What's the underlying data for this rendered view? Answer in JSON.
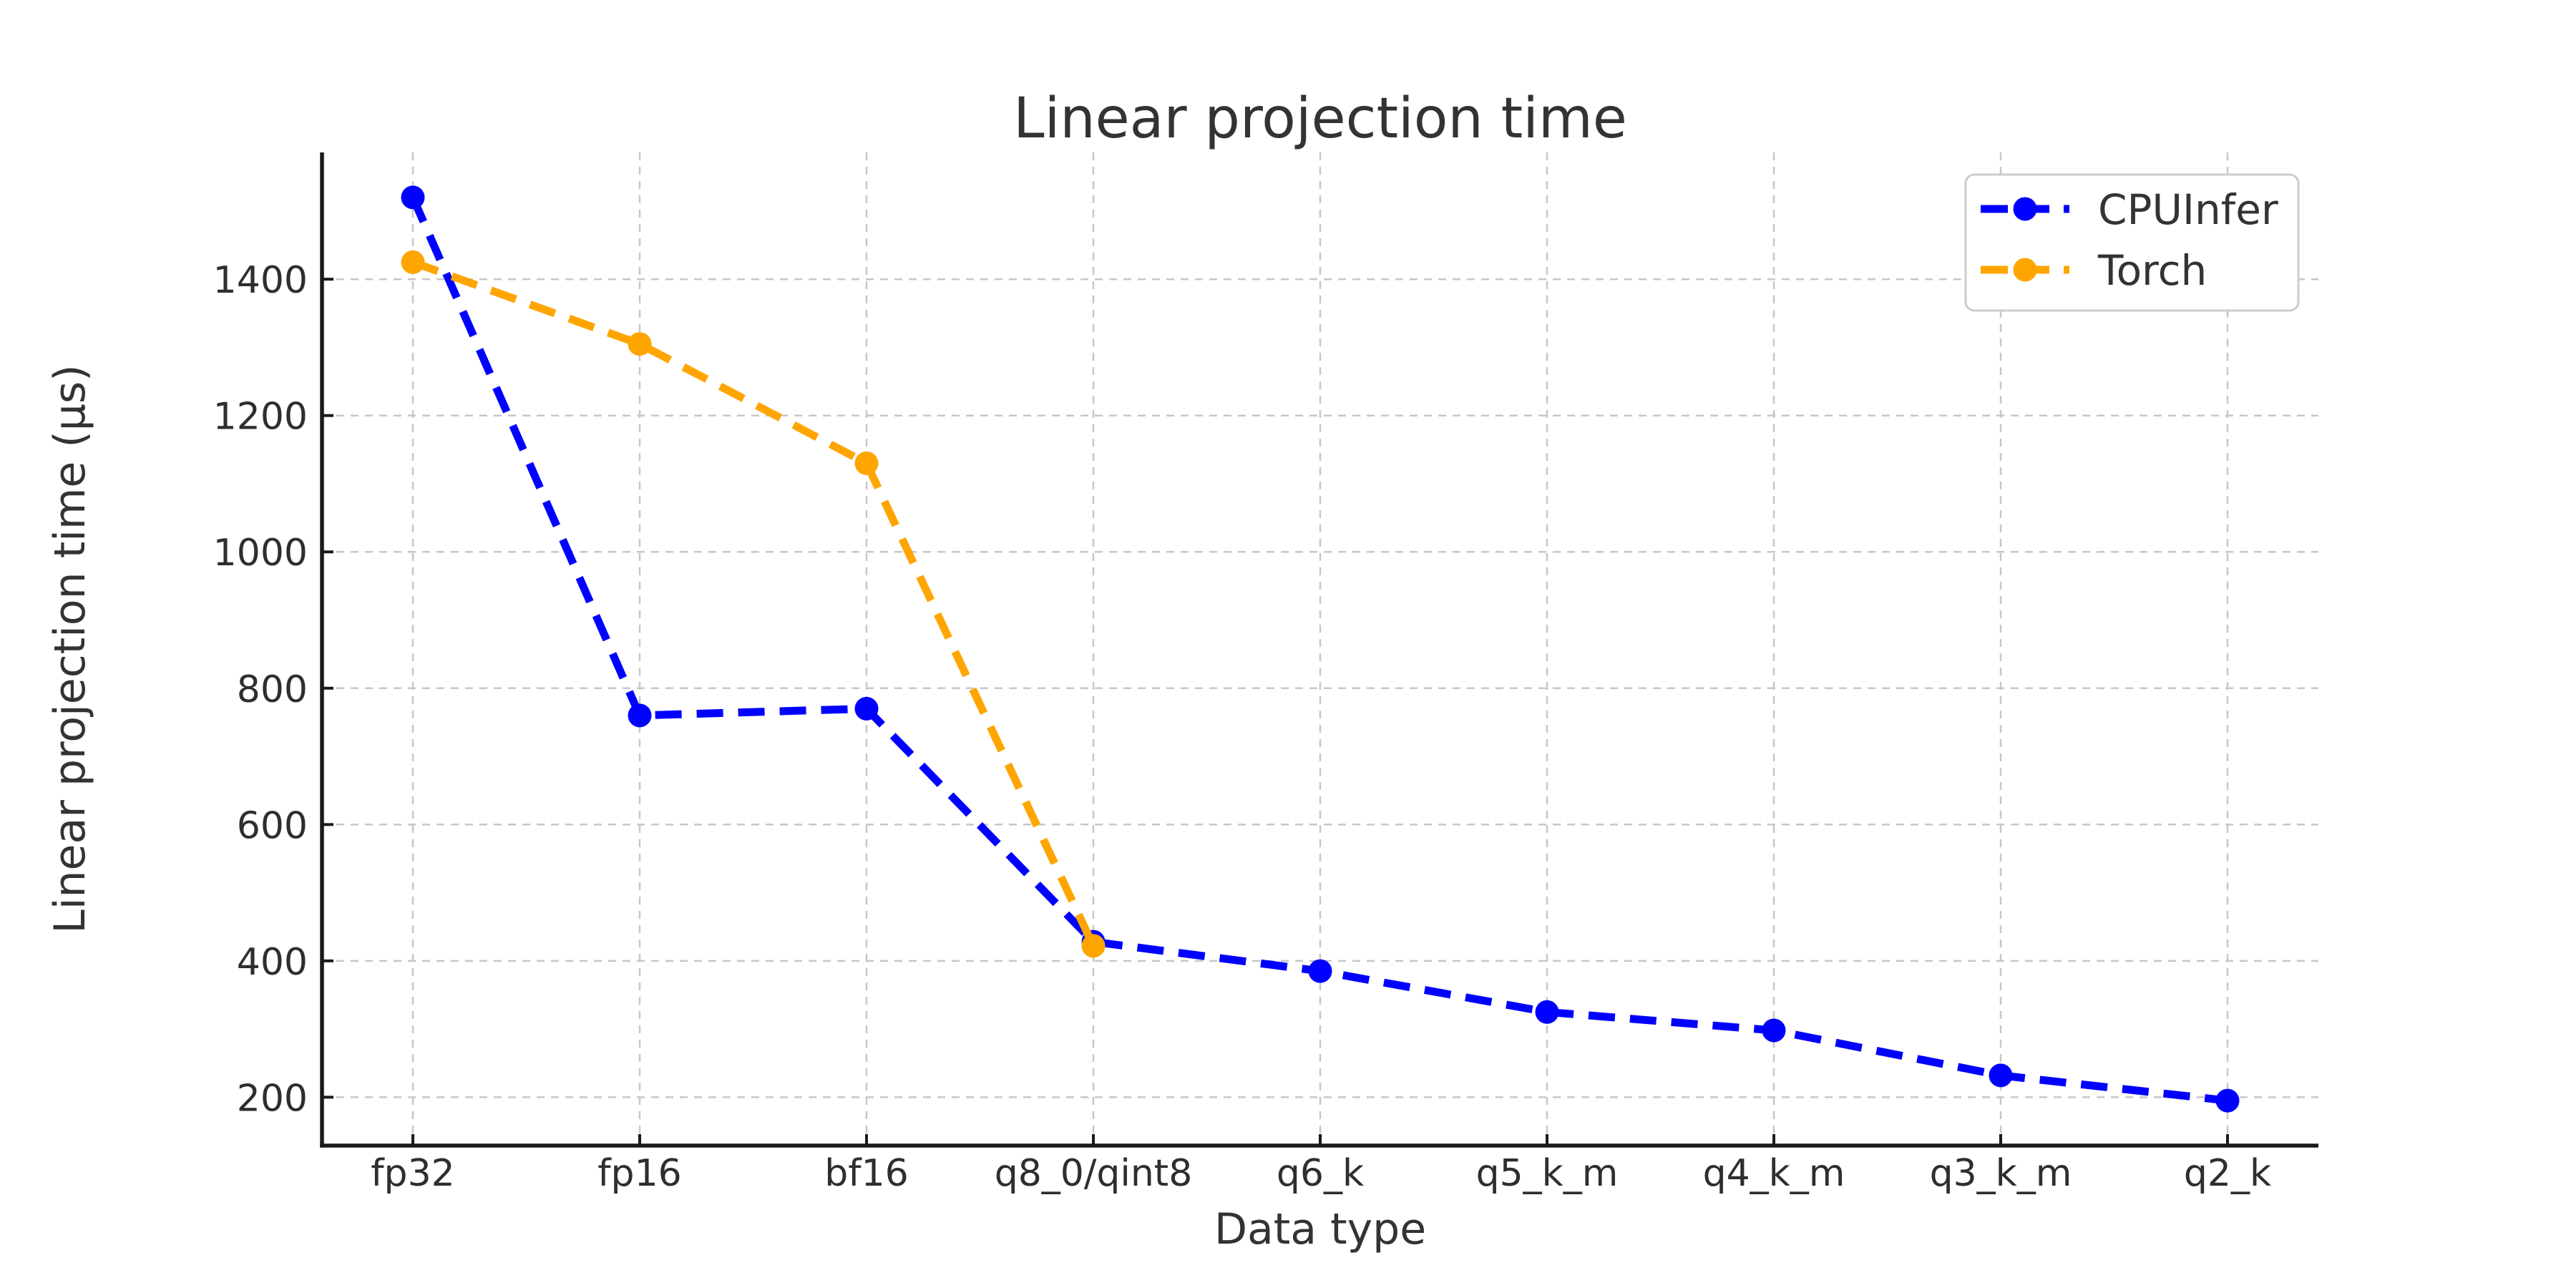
{
  "chart_data": {
    "type": "line",
    "title": "Linear projection time",
    "xlabel": "Data type",
    "ylabel": "Linear projection time (µs)",
    "categories": [
      "fp32",
      "fp16",
      "bf16",
      "q8_0/qint8",
      "q6_k",
      "q5_k_m",
      "q4_k_m",
      "q3_k_m",
      "q2_k"
    ],
    "series": [
      {
        "name": "CPUInfer",
        "color": "#0000ff",
        "values": [
          1520,
          760,
          770,
          428,
          385,
          325,
          298,
          232,
          195
        ]
      },
      {
        "name": "Torch",
        "color": "#ffa500",
        "values": [
          1425,
          1305,
          1130,
          422
        ]
      }
    ],
    "yticks": [
      200,
      400,
      600,
      800,
      1000,
      1200,
      1400
    ],
    "ylim": [
      129,
      1586
    ],
    "grid": true,
    "grid_style": "dashed",
    "line_style": "dashed",
    "marker": "circle",
    "legend_position": "upper right"
  },
  "style": {
    "background": "#ffffff",
    "grid_color": "#c7c7c7",
    "axis_color": "#1a1a1a",
    "text_color": "#333333",
    "legend_border": "#cccccc",
    "series_blue": "#0000ff",
    "series_orange": "#ffa500"
  }
}
